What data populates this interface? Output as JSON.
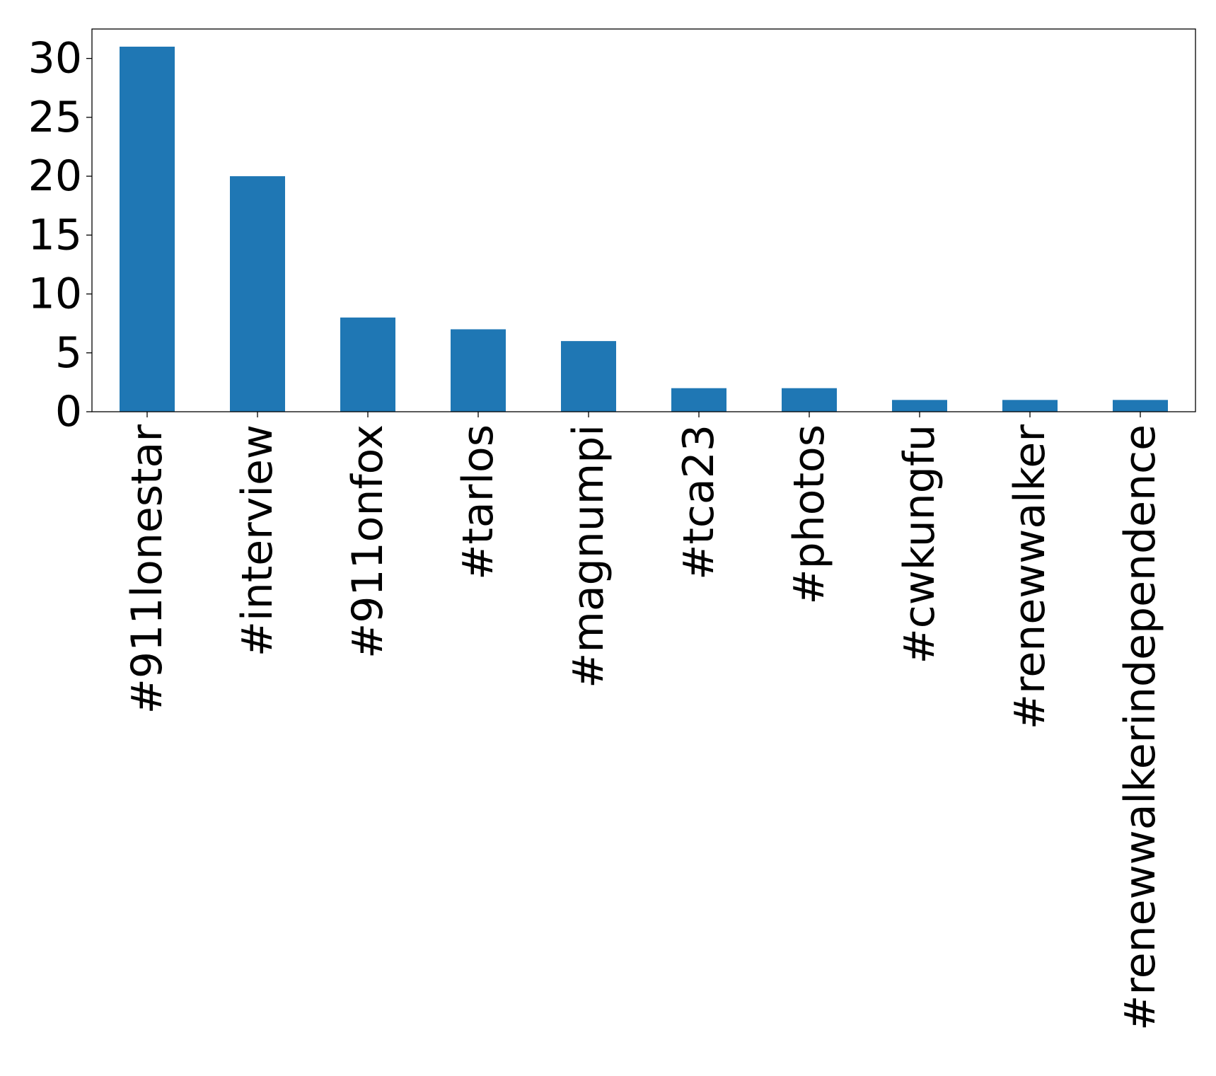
{
  "chart_data": {
    "type": "bar",
    "categories": [
      "#911lonestar",
      "#interview",
      "#911onfox",
      "#tarlos",
      "#magnumpi",
      "#tca23",
      "#photos",
      "#cwkungfu",
      "#renewwalker",
      "#renewwalkerindependence"
    ],
    "values": [
      31,
      20,
      8,
      7,
      6,
      2,
      2,
      1,
      1,
      1
    ],
    "yticks": [
      "0",
      "5",
      "10",
      "15",
      "20",
      "25",
      "30"
    ],
    "ylim": [
      0,
      32.5
    ],
    "bar_color": "#1f77b4",
    "grid": false,
    "legend": false
  }
}
